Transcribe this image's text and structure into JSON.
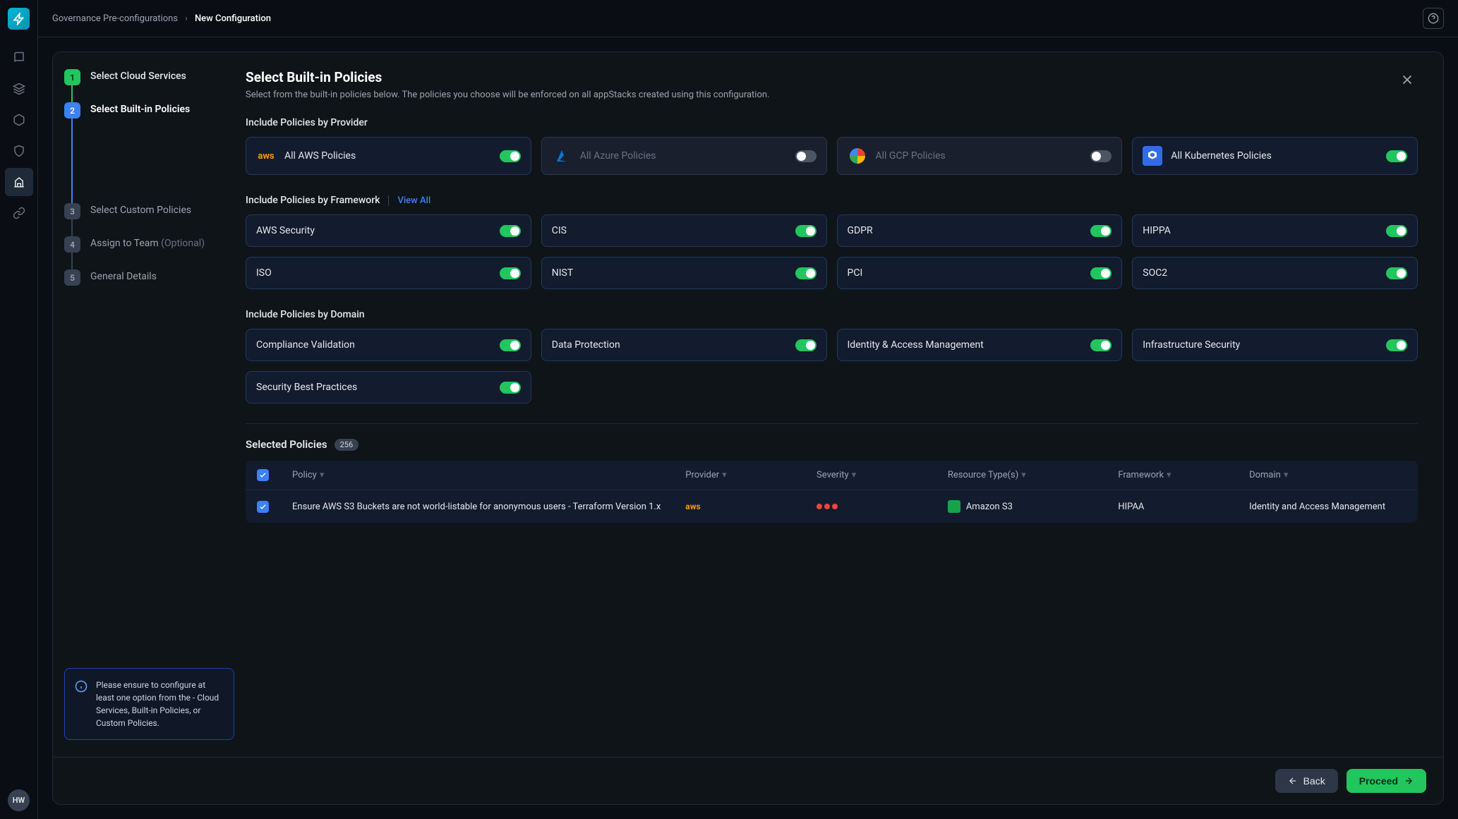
{
  "breadcrumb": {
    "parent": "Governance Pre-configurations",
    "current": "New Configuration"
  },
  "avatar": "HW",
  "stepper": {
    "steps": [
      {
        "num": "1",
        "label": "Select Cloud Services",
        "state": "done"
      },
      {
        "num": "2",
        "label": "Select Built-in Policies",
        "state": "active"
      },
      {
        "num": "3",
        "label": "Select Custom Policies",
        "state": "pending"
      },
      {
        "num": "4",
        "label": "Assign to Team",
        "optional": "(Optional)",
        "state": "pending"
      },
      {
        "num": "5",
        "label": "General Details",
        "state": "pending"
      }
    ],
    "info": "Please ensure to configure at least one option from the - Cloud Services, Built-in Policies, or Custom Policies."
  },
  "form": {
    "title": "Select Built-in Policies",
    "subtitle": "Select from the built-in policies below. The policies you choose will be enforced on all appStacks created using this configuration.",
    "section_provider": "Include Policies by Provider",
    "section_framework": "Include Policies by Framework",
    "section_domain": "Include Policies by Domain",
    "view_all": "View All",
    "providers": [
      {
        "label": "All AWS Policies",
        "icon": "aws",
        "on": true
      },
      {
        "label": "All Azure Policies",
        "icon": "azure",
        "on": false
      },
      {
        "label": "All GCP Policies",
        "icon": "gcp",
        "on": false
      },
      {
        "label": "All Kubernetes Policies",
        "icon": "k8s",
        "on": true
      }
    ],
    "frameworks": [
      {
        "label": "AWS Security",
        "on": true
      },
      {
        "label": "CIS",
        "on": true
      },
      {
        "label": "GDPR",
        "on": true
      },
      {
        "label": "HIPPA",
        "on": true
      },
      {
        "label": "ISO",
        "on": true
      },
      {
        "label": "NIST",
        "on": true
      },
      {
        "label": "PCI",
        "on": true
      },
      {
        "label": "SOC2",
        "on": true
      }
    ],
    "domains": [
      {
        "label": "Compliance Validation",
        "on": true
      },
      {
        "label": "Data Protection",
        "on": true
      },
      {
        "label": "Identity & Access Management",
        "on": true
      },
      {
        "label": "Infrastructure Security",
        "on": true
      },
      {
        "label": "Security Best Practices",
        "on": true
      }
    ]
  },
  "selected": {
    "title": "Selected Policies",
    "count": "256",
    "columns": [
      "Policy",
      "Provider",
      "Severity",
      "Resource Type(s)",
      "Framework",
      "Domain"
    ],
    "row": {
      "policy": "Ensure AWS S3 Buckets are not world-listable for anonymous users - Terraform Version 1.x",
      "provider": "aws",
      "resource": "Amazon S3",
      "framework": "HIPAA",
      "domain": "Identity and Access Management"
    }
  },
  "footer": {
    "back": "Back",
    "proceed": "Proceed"
  },
  "colors": {
    "bg": "#0a0d14",
    "panel": "#0f1419",
    "card": "#131b2e",
    "border": "#1f2937",
    "accent_green": "#22c55e",
    "accent_blue": "#3b82f6",
    "text": "#e5e7eb",
    "muted": "#9ca3af"
  }
}
